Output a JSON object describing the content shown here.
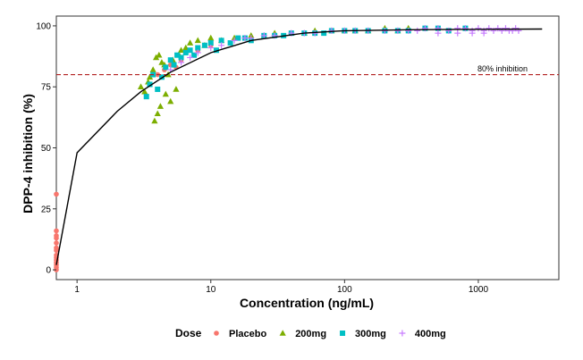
{
  "chart_data": {
    "type": "scatter",
    "title": "",
    "xlabel": "Concentration (ng/mL)",
    "ylabel": "DPP-4 inhibition (%)",
    "x_scale": "log10",
    "xlim": [
      0.7,
      4000
    ],
    "ylim": [
      -4,
      104
    ],
    "x_ticks": [
      1,
      10,
      100,
      1000
    ],
    "x_tick_labels": [
      "1",
      "10",
      "100",
      "1000"
    ],
    "y_ticks": [
      0,
      25,
      50,
      75,
      100
    ],
    "y_tick_labels": [
      "0",
      "25",
      "50",
      "75",
      "100"
    ],
    "grid": false,
    "legend_title": "Dose",
    "legend_placement": "bottom",
    "reference_line": {
      "y": 80,
      "style": "dashed",
      "color": "#b22222",
      "label": "80% inhibition"
    },
    "fit_curve": {
      "color": "#000000",
      "x": [
        0.7,
        1,
        2,
        3,
        5,
        10,
        20,
        50,
        100,
        300,
        1000,
        3000
      ],
      "y": [
        2,
        48,
        65,
        73,
        81,
        89,
        94,
        97,
        98,
        98.4,
        98.6,
        98.7
      ]
    },
    "series": [
      {
        "name": "Placebo",
        "marker": "circle",
        "color": "#f8766d",
        "x": [
          0.7,
          0.7,
          0.7,
          0.7,
          0.7,
          0.7,
          0.7,
          0.7,
          0.7,
          0.7,
          0.7,
          0.7,
          0.7,
          0.7,
          4,
          4.5,
          5,
          5.5,
          6,
          8,
          10
        ],
        "y": [
          31,
          16,
          14,
          13,
          11,
          9,
          8,
          6,
          5,
          4,
          3,
          2,
          1,
          0,
          80,
          82,
          84,
          83,
          86,
          90,
          92
        ]
      },
      {
        "name": "200mg",
        "marker": "triangle",
        "color": "#7cae00",
        "x": [
          3,
          3.2,
          3.4,
          3.5,
          3.7,
          3.8,
          3.9,
          4.0,
          4.1,
          4.2,
          4.3,
          4.5,
          4.6,
          4.8,
          5.0,
          5.2,
          5.5,
          5.8,
          6.0,
          6.5,
          7,
          8,
          9,
          10,
          12,
          15,
          20,
          25,
          30,
          40,
          50,
          60,
          80,
          100,
          120,
          150,
          200,
          250,
          300
        ],
        "y": [
          75,
          73,
          77,
          79,
          82,
          61,
          87,
          64,
          88,
          67,
          85,
          84,
          72,
          80,
          69,
          86,
          74,
          88,
          90,
          91,
          93,
          94,
          92,
          95,
          94,
          95,
          96,
          96,
          97,
          97,
          97,
          98,
          98,
          98,
          98,
          98,
          99,
          98,
          99
        ]
      },
      {
        "name": "300mg",
        "marker": "square",
        "color": "#00bfc4",
        "x": [
          3.3,
          3.5,
          3.7,
          4.0,
          4.3,
          4.6,
          5,
          5.3,
          5.6,
          6,
          6.5,
          7,
          7.5,
          8,
          9,
          10,
          11,
          12,
          14,
          16,
          18,
          20,
          25,
          30,
          35,
          40,
          50,
          60,
          70,
          80,
          100,
          120,
          150,
          200,
          250,
          300,
          400,
          500,
          600,
          800
        ],
        "y": [
          71,
          76,
          80,
          74,
          79,
          83,
          86,
          84,
          88,
          87,
          89,
          90,
          88,
          91,
          92,
          93,
          90,
          94,
          93,
          95,
          95,
          94,
          96,
          96,
          96,
          97,
          97,
          97,
          97,
          98,
          98,
          98,
          98,
          98,
          98,
          98,
          99,
          99,
          98,
          99
        ]
      },
      {
        "name": "400mg",
        "marker": "plus",
        "color": "#c77cff",
        "x": [
          5,
          6,
          7,
          8,
          10,
          12,
          15,
          18,
          20,
          25,
          30,
          40,
          50,
          60,
          80,
          100,
          120,
          150,
          200,
          250,
          300,
          350,
          400,
          500,
          600,
          700,
          800,
          900,
          1000,
          1100,
          1200,
          1300,
          1400,
          1500,
          1600,
          1700,
          1800,
          1900,
          2000,
          500,
          700,
          900,
          1100
        ],
        "y": [
          82,
          85,
          87,
          89,
          91,
          92,
          94,
          95,
          95,
          96,
          96,
          97,
          97,
          97,
          98,
          98,
          98,
          98,
          98,
          98,
          98,
          98,
          99,
          99,
          98,
          99,
          99,
          98,
          99,
          98,
          99,
          98,
          99,
          98,
          99,
          98,
          98,
          99,
          98,
          97,
          97,
          97,
          97
        ]
      }
    ]
  }
}
